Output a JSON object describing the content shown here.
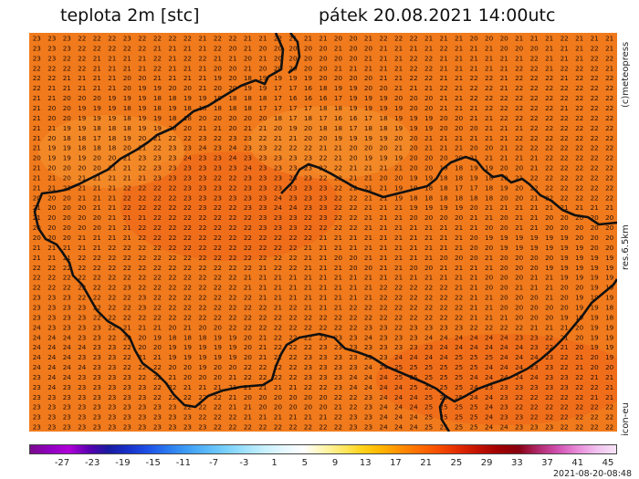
{
  "header": {
    "title_left": "teplota 2m [stc]",
    "title_right": "pátek 20.08.2021 14:00utc"
  },
  "side_labels": {
    "credit": "(c)meteopress",
    "resolution": "res.6.5km",
    "model": "icon-eu"
  },
  "legend": {
    "ticks": [
      "-27",
      "-23",
      "-19",
      "-15",
      "-11",
      "-7",
      "-3",
      "1",
      "5",
      "9",
      "13",
      "17",
      "21",
      "25",
      "29",
      "33",
      "37",
      "41",
      "45"
    ],
    "colors": [
      "#7a0a8c",
      "#9000c0",
      "#b000d8",
      "#5a00b0",
      "#1a1aa0",
      "#1830c8",
      "#1e50e6",
      "#2a78f0",
      "#3c9cf4",
      "#58b8f8",
      "#78d0fb",
      "#a0e2fc",
      "#c8f0fd",
      "#e6f8ff",
      "#ffffff",
      "#fff6b0",
      "#ffe866",
      "#ffd21a",
      "#ffb400",
      "#ff8c00",
      "#ff6a00",
      "#f54a00",
      "#e02800",
      "#c01000",
      "#a00000",
      "#880010",
      "#b0286a",
      "#d050b0",
      "#e88ad8",
      "#f0c0ee",
      "#f8e4f8"
    ]
  },
  "timestamp": "2021-08-20-08:48",
  "map": {
    "field_color": "#f07a1c",
    "hot_color": "#f0641a",
    "cool_color": "#f59430",
    "border_color": "#111111",
    "rows": [
      "23 23 23 22 22 22 23 22 22 22 22 21 22 22 21 21 22 21 21 21 20 20 21 22 22 22 21 21 21 20 20 20 21 21 21 22 21 21 21",
      "23 23 23 22 22 22 22 22 21 21 21 21 22 20 21 20 20 20 20 20 21 20 20 21 21 21 21 22 21 21 21 20 20 20 21 21 21 22 21",
      "23 23 22 22 21 21 21 21 22 21 22 22 21 21 20 21 20 20 20 20 20 20 21 21 21 22 22 21 21 21 21 21 21 22 21 21 21 22 22",
      "22 22 22 22 21 21 21 21 22 21 21 21 20 20 21 20 20 20 20 20 21 21 21 21 21 22 22 21 21 21 21 21 22 22 21 22 22 22 21",
      "22 22 21 21 21 21 20 20 21 21 21 21 19 20 18 19 19 19 19 20 20 20 20 21 21 22 22 21 21 22 22 21 22 22 22 21 22 22 22",
      "22 21 21 21 21 21 20 19 19 20 20 21 20 20 19 19 17 17 16 18 19 19 20 20 21 21 21 22 21 22 22 21 22 22 22 22 22 22 22",
      "21 21 20 20 20 19 19 19 18 18 19 19 19 18 18 18 17 16 16 16 17 19 19 19 20 20 20 21 21 22 22 22 22 22 22 22 22 22 22",
      "21 20 20 19 19 19 18 19 18 19 18 18 18 18 18 17 17 17 17 18 18 19 19 19 19 20 20 21 21 21 22 22 22 22 22 21 22 22 22",
      "21 20 20 19 19 19 18 19 19 18 18 20 20 20 20 20 18 17 18 17 16 16 17 18 19 19 19 20 20 21 21 22 22 22 22 22 22 22 22",
      "21 21 19 19 18 18 18 19 19 20 20 21 21 20 21 21 20 19 20 18 18 17 18 18 19 19 19 20 20 20 21 21 21 22 22 22 22 22 22",
      "21 20 18 18 17 18 19 20 21 22 22 23 22 23 23 22 21 21 20 20 19 19 19 19 20 20 21 21 21 21 21 21 22 22 22 22 22 22 22",
      "21 19 19 18 18 18 20 21 22 23 23 24 23 24 23 23 22 22 22 21 21 20 20 20 21 20 21 21 21 20 20 21 22 22 22 22 22 22 22",
      "20 19 19 19 20 20 21 23 23 23 24 23 23 24 23 23 23 23 23 22 21 20 19 19 19 20 20 20 20 21 21 21 21 21 22 22 22 22 22",
      "21 20 20 20 20 21 21 22 23 23 23 23 23 23 24 23 23 23 23 22 22 21 21 21 21 20 20 19 18 19 19 20 20 21 22 22 22 22 22",
      "21 21 20 21 21 21 21 21 23 23 23 23 22 22 23 23 23 23 23 22 22 21 21 20 20 19 19 18 18 19 18 19 21 22 22 22 22 22 22",
      "21 21 22 21 21 21 22 22 22 22 23 23 23 22 23 23 23 23 23 23 22 22 21 21 19 19 18 18 17 17 18 19 20 22 22 22 22 22 22",
      "20 20 20 21 21 21 22 22 22 22 23 23 23 23 23 23 24 23 23 23 22 22 21 21 19 18 18 18 18 18 18 20 20 21 22 22 22 22 22",
      "21 20 20 20 21 21 22 22 22 22 22 23 22 22 23 23 24 24 23 23 22 22 21 21 21 19 19 19 19 20 21 21 21 21 21 21 21 21 21",
      "21 20 20 20 20 21 21 21 22 22 22 22 22 22 22 23 23 23 22 23 22 22 21 21 21 20 20 20 20 21 21 20 21 21 20 20 20 20 20",
      "20 20 20 20 20 21 21 22 22 22 22 22 22 22 22 23 23 23 22 22 22 22 21 21 21 21 21 21 21 21 20 20 21 21 20 20 20 20 20",
      "20 20 20 21 21 21 21 22 22 22 22 22 22 22 22 22 22 22 22 21 21 21 21 21 21 21 21 21 21 20 19 19 19 19 19 19 20 20 20",
      "21 21 21 21 21 22 22 22 22 22 22 22 22 22 22 22 22 22 21 21 21 21 21 21 21 21 21 21 21 20 20 19 19 19 19 19 19 20 20",
      "21 21 21 22 22 22 22 22 22 22 22 22 22 22 22 22 22 22 21 21 20 20 21 21 21 21 21 20 20 20 21 20 20 20 20 19 19 19 19",
      "22 22 22 22 22 22 22 22 22 22 22 22 22 22 22 21 22 22 21 21 21 20 20 21 21 20 20 21 21 21 21 20 20 20 19 19 19 19 19",
      "22 22 22 22 22 22 22 22 22 22 22 22 22 22 21 21 21 21 21 21 21 21 21 21 21 21 21 21 21 21 20 20 20 21 21 19 19 19 19",
      "22 22 22 22 22 22 23 22 22 22 22 22 22 22 21 21 21 21 21 21 21 21 21 22 22 22 22 22 21 21 20 20 21 21 21 20 20 19 19",
      "23 23 23 22 22 22 22 23 22 22 22 22 22 22 22 21 21 21 21 21 21 21 21 22 22 22 22 22 22 21 21 20 20 20 21 20 19 19 19",
      "23 23 23 23 22 22 22 23 22 22 22 22 22 22 22 22 21 22 21 21 21 22 22 22 22 22 22 22 22 21 21 20 20 20 20 20 19 19 18",
      "23 23 23 23 22 22 22 22 22 22 22 22 22 22 22 22 22 22 22 22 22 22 22 22 22 22 22 22 22 21 21 21 20 20 20 19 19 19 18",
      "24 23 23 23 23 22 21 21 21 20 21 20 20 22 22 22 22 22 22 22 22 22 23 23 22 23 23 23 23 22 22 22 22 21 21 21 20 19 19",
      "24 24 24 23 23 22 20 20 19 18 18 18 19 19 20 21 22 22 22 23 23 23 24 23 23 23 24 24 24 24 24 24 23 23 22 21 20 19 19",
      "24 24 24 24 23 23 22 20 20 19 19 19 19 19 20 21 22 22 22 23 23 23 23 23 23 23 23 24 24 24 24 24 24 23 22 21 20 19 19",
      "24 24 24 23 23 23 22 21 21 19 19 19 19 19 20 21 22 22 23 23 23 23 23 23 24 24 24 24 25 25 25 24 24 24 23 22 21 20 19",
      "24 24 24 24 23 23 22 22 22 20 20 19 20 20 22 22 22 22 23 23 23 23 24 24 25 25 25 25 25 25 24 24 24 23 23 22 21 20 20",
      "23 24 24 23 23 23 23 22 22 21 20 20 20 21 22 22 22 22 23 23 23 24 24 24 25 25 25 25 25 24 24 24 24 24 23 23 22 21 21",
      "23 24 23 23 23 23 23 23 22 22 21 21 21 21 21 21 21 21 22 22 23 24 24 24 24 25 25 25 25 24 23 23 23 23 23 23 22 22 21",
      "23 23 23 23 23 23 23 23 22 22 22 22 22 21 20 20 20 20 20 20 22 22 23 24 24 24 25 25 25 24 24 23 22 22 22 22 22 21 21",
      "23 23 23 23 23 23 23 23 23 23 22 22 22 21 21 20 20 20 20 20 21 22 23 24 24 24 25 25 25 25 24 23 22 22 22 22 22 22 22",
      "23 23 23 23 23 23 23 23 23 23 23 22 22 22 21 21 21 21 21 21 22 23 23 24 24 24 25 25 25 25 24 23 23 22 22 22 22 22 22",
      "23 23 23 23 23 23 23 23 23 23 23 23 22 22 22 22 22 22 22 22 22 23 23 24 24 24 25 25 25 25 24 24 23 23 23 22 22 22 22"
    ]
  }
}
